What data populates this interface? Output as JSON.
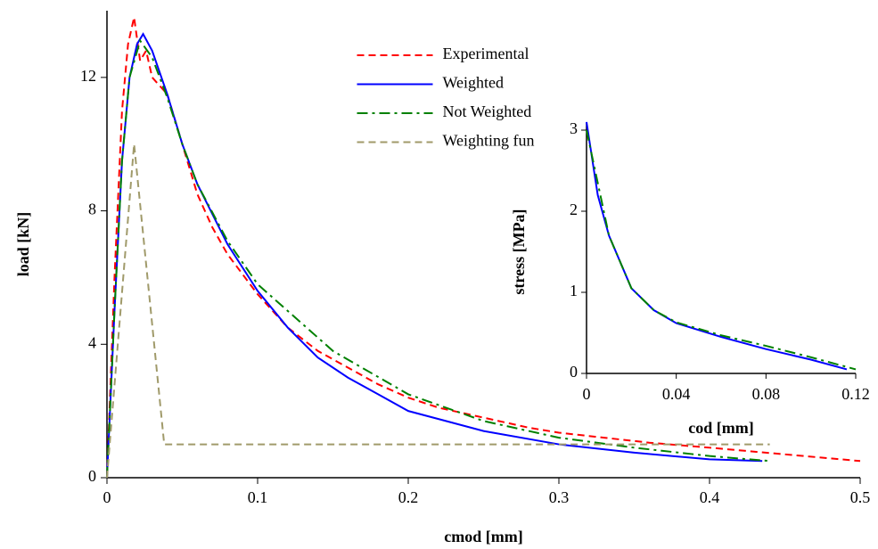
{
  "chart_data": [
    {
      "type": "line",
      "xlabel": "cmod [mm]",
      "ylabel": "load [kN]",
      "xlim": [
        0,
        0.5
      ],
      "xticks": [
        0,
        0.1,
        0.2,
        0.3,
        0.4,
        0.5
      ],
      "ylim": [
        0,
        14
      ],
      "yticks": [
        0,
        4,
        8,
        12
      ],
      "legend": "upper center",
      "series": [
        {
          "name": "Experimental",
          "color": "#ff0000",
          "style": "dashed",
          "x": [
            0,
            0.005,
            0.01,
            0.014,
            0.018,
            0.022,
            0.026,
            0.03,
            0.04,
            0.05,
            0.06,
            0.07,
            0.08,
            0.1,
            0.12,
            0.14,
            0.16,
            0.18,
            0.2,
            0.22,
            0.25,
            0.28,
            0.3,
            0.33,
            0.36,
            0.4,
            0.45,
            0.5
          ],
          "values": [
            0,
            6,
            11,
            13,
            13.8,
            12.5,
            12.8,
            12,
            11.5,
            10,
            8.5,
            7.5,
            6.7,
            5.5,
            4.5,
            3.8,
            3.3,
            2.8,
            2.4,
            2.1,
            1.8,
            1.5,
            1.35,
            1.2,
            1.05,
            0.9,
            0.7,
            0.5
          ]
        },
        {
          "name": "Weighted",
          "color": "#0000ff",
          "style": "solid",
          "x": [
            0,
            0.005,
            0.01,
            0.015,
            0.02,
            0.024,
            0.03,
            0.04,
            0.05,
            0.06,
            0.08,
            0.1,
            0.12,
            0.14,
            0.16,
            0.18,
            0.2,
            0.25,
            0.3,
            0.35,
            0.4,
            0.435
          ],
          "values": [
            0,
            5,
            9.5,
            12,
            13,
            13.3,
            12.8,
            11.5,
            10,
            8.8,
            7,
            5.6,
            4.5,
            3.6,
            3,
            2.5,
            2,
            1.4,
            1,
            0.75,
            0.55,
            0.5
          ]
        },
        {
          "name": "Not Weighted",
          "color": "#008000",
          "style": "dashdot",
          "x": [
            0,
            0.005,
            0.01,
            0.015,
            0.022,
            0.03,
            0.04,
            0.05,
            0.06,
            0.08,
            0.1,
            0.15,
            0.2,
            0.25,
            0.3,
            0.35,
            0.4,
            0.44
          ],
          "values": [
            0,
            5,
            9.5,
            12,
            13.1,
            12.6,
            11.4,
            10,
            8.8,
            7.1,
            5.8,
            3.8,
            2.5,
            1.7,
            1.2,
            0.9,
            0.65,
            0.5
          ]
        },
        {
          "name": "Weighting function",
          "color": "#a09a6a",
          "style": "dashed",
          "x": [
            0,
            0.018,
            0.038,
            0.44
          ],
          "values": [
            0,
            10,
            1,
            1
          ]
        }
      ]
    },
    {
      "type": "line",
      "xlabel": "cod [mm]",
      "ylabel": "stress [MPa]",
      "xlim": [
        0,
        0.12
      ],
      "xticks": [
        0,
        0.04,
        0.08,
        0.12
      ],
      "ylim": [
        0,
        3
      ],
      "yticks": [
        0,
        1,
        2,
        3
      ],
      "series": [
        {
          "color": "#0000ff",
          "style": "solid",
          "x": [
            0,
            0.005,
            0.01,
            0.02,
            0.03,
            0.04,
            0.06,
            0.08,
            0.1,
            0.116
          ],
          "values": [
            3.1,
            2.2,
            1.7,
            1.05,
            0.78,
            0.62,
            0.45,
            0.3,
            0.17,
            0.05
          ]
        },
        {
          "color": "#008000",
          "style": "dashdot",
          "x": [
            0,
            0.01,
            0.02,
            0.03,
            0.04,
            0.06,
            0.08,
            0.1,
            0.12
          ],
          "values": [
            3,
            1.7,
            1.05,
            0.78,
            0.63,
            0.47,
            0.34,
            0.2,
            0.05
          ]
        }
      ]
    }
  ]
}
